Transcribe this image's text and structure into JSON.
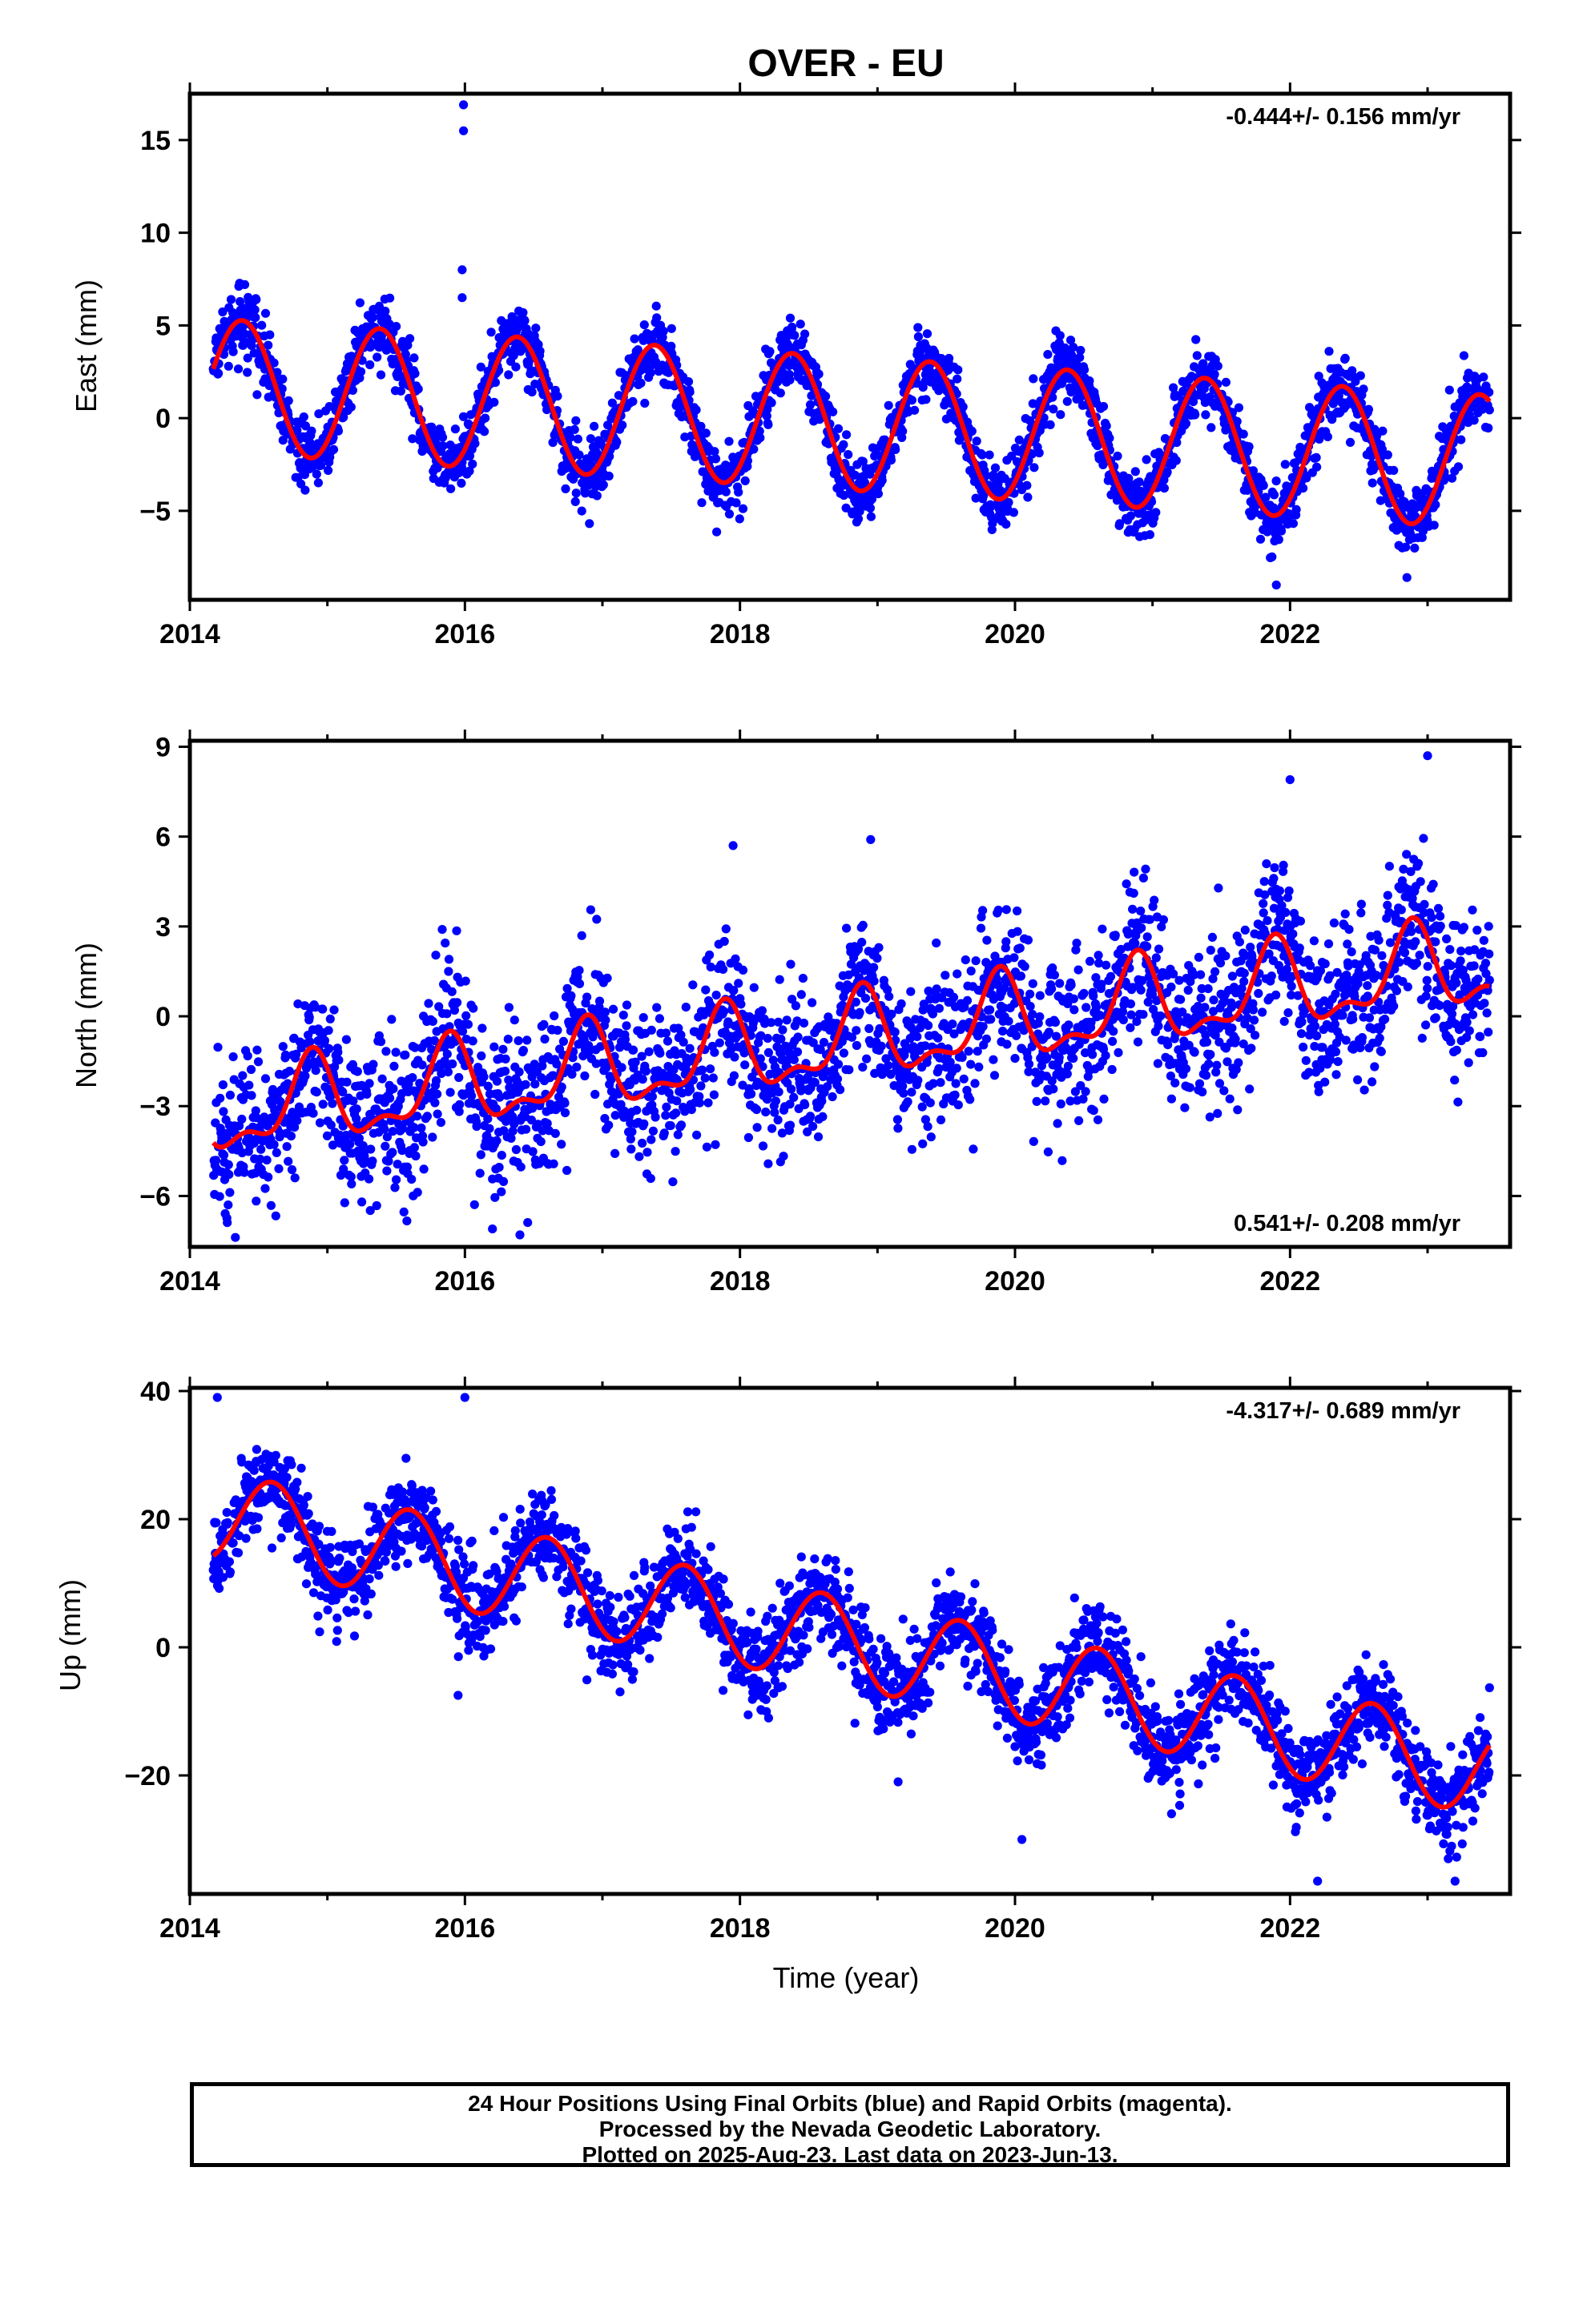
{
  "title": "OVER - EU",
  "xlabel": "Time (year)",
  "footer": {
    "line1": "24 Hour Positions Using Final Orbits (blue) and Rapid Orbits (magenta).",
    "line2": "Processed by the Nevada Geodetic Laboratory.",
    "line3": "Plotted on 2025-Aug-23. Last data on 2023-Jun-13."
  },
  "colors": {
    "points": "#0000ff",
    "model": "#ff0000",
    "frame": "#000000"
  },
  "chart_data": [
    {
      "type": "scatter",
      "ylabel": "East (mm)",
      "rate_label": "-0.444+/- 0.156 mm/yr",
      "rate_position": "top-right",
      "xlim": [
        2014.0,
        2023.6
      ],
      "ylim": [
        -9.8,
        17.5
      ],
      "xticks": [
        2014,
        2016,
        2018,
        2020,
        2022
      ],
      "yticks": [
        -5,
        0,
        5,
        10,
        15
      ],
      "model": {
        "offset": 1.75,
        "trend": -0.444,
        "t0": 2014.2,
        "annual_amplitude": 3.6,
        "annual_peak": 0.38,
        "semiannual_amplitude": 0.0,
        "semiannual_peak": 0.0,
        "noise": 0.9
      },
      "outliers": [
        [
          2015.99,
          16.9
        ],
        [
          2015.99,
          15.5
        ],
        [
          2015.98,
          8.0
        ],
        [
          2015.98,
          6.5
        ],
        [
          2022.85,
          -8.6
        ],
        [
          2021.9,
          -9.0
        ]
      ],
      "model_color": "#ff0000",
      "point_color": "#0000ff"
    },
    {
      "type": "scatter",
      "ylabel": "North (mm)",
      "rate_label": "0.541+/- 0.208 mm/yr",
      "rate_position": "bottom-right",
      "xlim": [
        2014.0,
        2023.6
      ],
      "ylim": [
        -7.7,
        9.2
      ],
      "xticks": [
        2014,
        2016,
        2018,
        2020,
        2022
      ],
      "yticks": [
        -6,
        -3,
        0,
        3,
        6,
        9
      ],
      "model": {
        "offset": -3.3,
        "trend": 0.541,
        "t0": 2014.2,
        "annual_amplitude": 1.3,
        "annual_peak": 0.88,
        "semiannual_amplitude": 0.6,
        "semiannual_peak": 0.9,
        "noise": 1.3
      },
      "outliers": [
        [
          2016.2,
          -7.1
        ],
        [
          2016.4,
          -7.3
        ],
        [
          2017.95,
          5.7
        ],
        [
          2018.95,
          5.9
        ],
        [
          2023.0,
          8.7
        ],
        [
          2022.0,
          7.9
        ],
        [
          2015.25,
          -6.2
        ]
      ],
      "model_color": "#ff0000",
      "point_color": "#0000ff"
    },
    {
      "type": "scatter",
      "ylabel": "Up (mm)",
      "rate_label": "-4.317+/- 0.689 mm/yr",
      "rate_position": "top-right",
      "xlim": [
        2014.0,
        2023.6
      ],
      "ylim": [
        -38.5,
        40.5
      ],
      "xticks": [
        2014,
        2016,
        2018,
        2020,
        2022
      ],
      "yticks": [
        -20,
        0,
        20,
        40
      ],
      "model": {
        "offset": 20.5,
        "trend": -4.317,
        "t0": 2014.2,
        "annual_amplitude": 7.0,
        "annual_peak": 0.6,
        "semiannual_amplitude": 0.0,
        "semiannual_peak": 0.0,
        "noise": 3.6
      },
      "outliers": [
        [
          2014.2,
          39.0
        ],
        [
          2016.0,
          39.0
        ],
        [
          2015.95,
          -7.5
        ],
        [
          2020.05,
          -30.0
        ],
        [
          2022.2,
          -36.5
        ],
        [
          2023.2,
          -36.5
        ],
        [
          2019.15,
          -21.0
        ],
        [
          2023.15,
          -33.0
        ]
      ],
      "model_color": "#ff0000",
      "point_color": "#0000ff"
    }
  ]
}
